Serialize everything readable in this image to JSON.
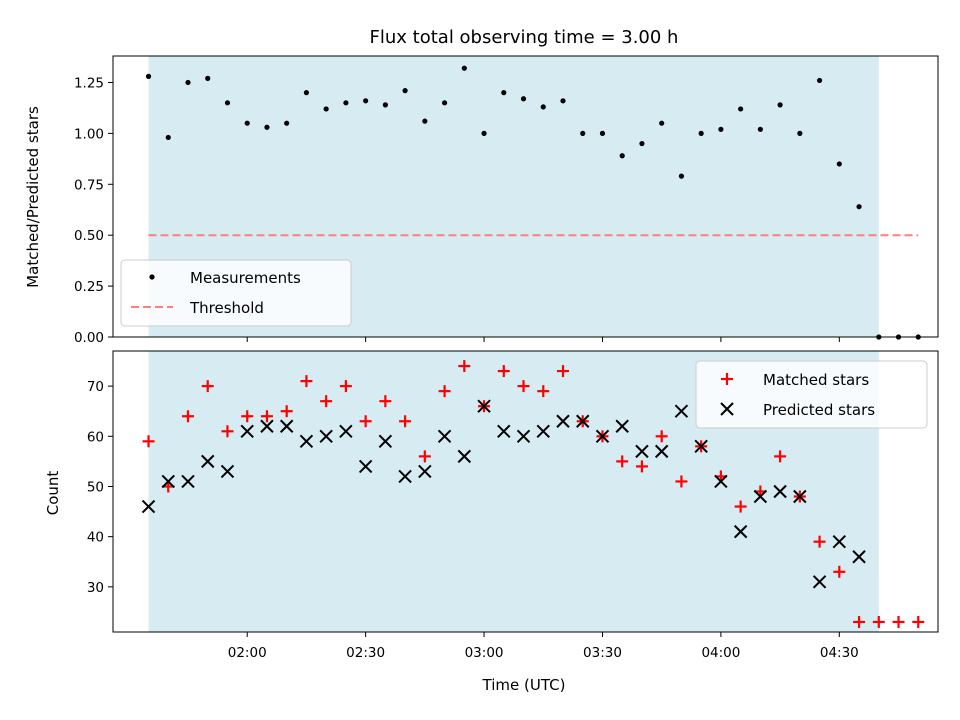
{
  "chart_data": [
    {
      "type": "scatter",
      "title": "Flux total observing time = 3.00 h",
      "xlabel": "",
      "ylabel": "Matched/Predicted stars",
      "ylim": [
        0,
        1.38
      ],
      "yticks": [
        "0.00",
        "0.25",
        "0.50",
        "0.75",
        "1.00",
        "1.25"
      ],
      "legend_position": "lower-left",
      "shaded_span": [
        "01:35",
        "04:40"
      ],
      "threshold": {
        "name": "Threshold",
        "value": 0.5,
        "color": "#ff7f7f",
        "style": "dashed"
      },
      "series": [
        {
          "name": "Measurements",
          "color": "#000000",
          "marker": "dot",
          "x": [
            "01:35",
            "01:40",
            "01:45",
            "01:50",
            "01:55",
            "02:00",
            "02:05",
            "02:10",
            "02:15",
            "02:20",
            "02:25",
            "02:30",
            "02:35",
            "02:40",
            "02:45",
            "02:50",
            "02:55",
            "03:00",
            "03:05",
            "03:10",
            "03:15",
            "03:20",
            "03:25",
            "03:30",
            "03:35",
            "03:40",
            "03:45",
            "03:50",
            "03:55",
            "04:00",
            "04:05",
            "04:10",
            "04:15",
            "04:20",
            "04:25",
            "04:30",
            "04:35",
            "04:40",
            "04:45",
            "04:50"
          ],
          "y": [
            1.28,
            0.98,
            1.25,
            1.27,
            1.15,
            1.05,
            1.03,
            1.05,
            1.2,
            1.12,
            1.15,
            1.16,
            1.14,
            1.21,
            1.06,
            1.15,
            1.32,
            1.0,
            1.2,
            1.17,
            1.13,
            1.16,
            1.0,
            1.0,
            0.89,
            0.95,
            1.05,
            0.79,
            1.0,
            1.02,
            1.12,
            1.02,
            1.14,
            1.0,
            1.26,
            0.85,
            0.64,
            0.0,
            0.0,
            0.0
          ]
        }
      ]
    },
    {
      "type": "scatter",
      "title": "",
      "xlabel": "Time (UTC)",
      "ylabel": "Count",
      "ylim": [
        21,
        77
      ],
      "yticks": [
        "30",
        "40",
        "50",
        "60",
        "70"
      ],
      "xticks": [
        "02:00",
        "02:30",
        "03:00",
        "03:30",
        "04:00",
        "04:30"
      ],
      "xlim": [
        "01:26",
        "04:55"
      ],
      "legend_position": "top-right",
      "shaded_span": [
        "01:35",
        "04:40"
      ],
      "series": [
        {
          "name": "Matched stars",
          "color": "#ff0000",
          "marker": "plus",
          "x": [
            "01:35",
            "01:40",
            "01:45",
            "01:50",
            "01:55",
            "02:00",
            "02:05",
            "02:10",
            "02:15",
            "02:20",
            "02:25",
            "02:30",
            "02:35",
            "02:40",
            "02:45",
            "02:50",
            "02:55",
            "03:00",
            "03:05",
            "03:10",
            "03:15",
            "03:20",
            "03:25",
            "03:30",
            "03:35",
            "03:40",
            "03:45",
            "03:50",
            "03:55",
            "04:00",
            "04:05",
            "04:10",
            "04:15",
            "04:20",
            "04:25",
            "04:30",
            "04:35",
            "04:40",
            "04:45",
            "04:50"
          ],
          "y": [
            59,
            50,
            64,
            70,
            61,
            64,
            64,
            65,
            71,
            67,
            70,
            63,
            67,
            63,
            56,
            69,
            74,
            66,
            73,
            70,
            69,
            73,
            63,
            60,
            55,
            54,
            60,
            51,
            58,
            52,
            46,
            49,
            56,
            48,
            39,
            33,
            23,
            23,
            23,
            23
          ]
        },
        {
          "name": "Predicted stars",
          "color": "#000000",
          "marker": "x",
          "x": [
            "01:35",
            "01:40",
            "01:45",
            "01:50",
            "01:55",
            "02:00",
            "02:05",
            "02:10",
            "02:15",
            "02:20",
            "02:25",
            "02:30",
            "02:35",
            "02:40",
            "02:45",
            "02:50",
            "02:55",
            "03:00",
            "03:05",
            "03:10",
            "03:15",
            "03:20",
            "03:25",
            "03:30",
            "03:35",
            "03:40",
            "03:45",
            "03:50",
            "03:55",
            "04:00",
            "04:05",
            "04:10",
            "04:15",
            "04:20",
            "04:25",
            "04:30",
            "04:35"
          ],
          "y": [
            46,
            51,
            51,
            55,
            53,
            61,
            62,
            62,
            59,
            60,
            61,
            54,
            59,
            52,
            53,
            60,
            56,
            66,
            61,
            60,
            61,
            63,
            63,
            60,
            62,
            57,
            57,
            65,
            58,
            51,
            41,
            48,
            49,
            48,
            31,
            39,
            36
          ]
        }
      ]
    }
  ],
  "colors": {
    "shade": "#add8e6",
    "shade_alpha": 0.5
  }
}
